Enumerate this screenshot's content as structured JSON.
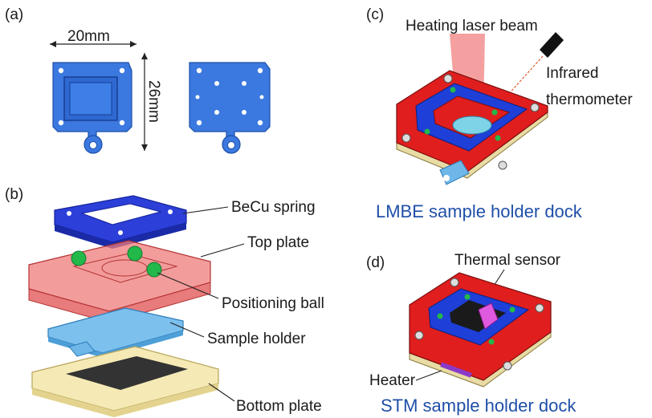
{
  "panels": {
    "a": "(a)",
    "b": "(b)",
    "c": "(c)",
    "d": "(d)"
  },
  "dimensions": {
    "width": "20mm",
    "height": "26mm"
  },
  "exploded_labels": {
    "spring": "BeCu spring",
    "top_plate": "Top plate",
    "ball": "Positioning ball",
    "holder": "Sample holder",
    "bottom_plate": "Bottom plate"
  },
  "lmbe": {
    "laser": "Heating laser beam",
    "thermometer_1": "Infrared",
    "thermometer_2": "thermometer",
    "caption": "LMBE sample holder dock"
  },
  "stm": {
    "sensor": "Thermal sensor",
    "heater": "Heater",
    "caption": "STM sample holder dock"
  },
  "colors": {
    "caption_blue": "#1f4fa8",
    "part_blue": "#3b78e0",
    "dock_red": "#e01e1e",
    "dock_blue": "#1e3fd8",
    "ball_green": "#22b84a",
    "plate_yellow": "#f5eab5",
    "holder_lightblue": "#6fb7e8",
    "translucent_red": "#ef7b7b"
  }
}
